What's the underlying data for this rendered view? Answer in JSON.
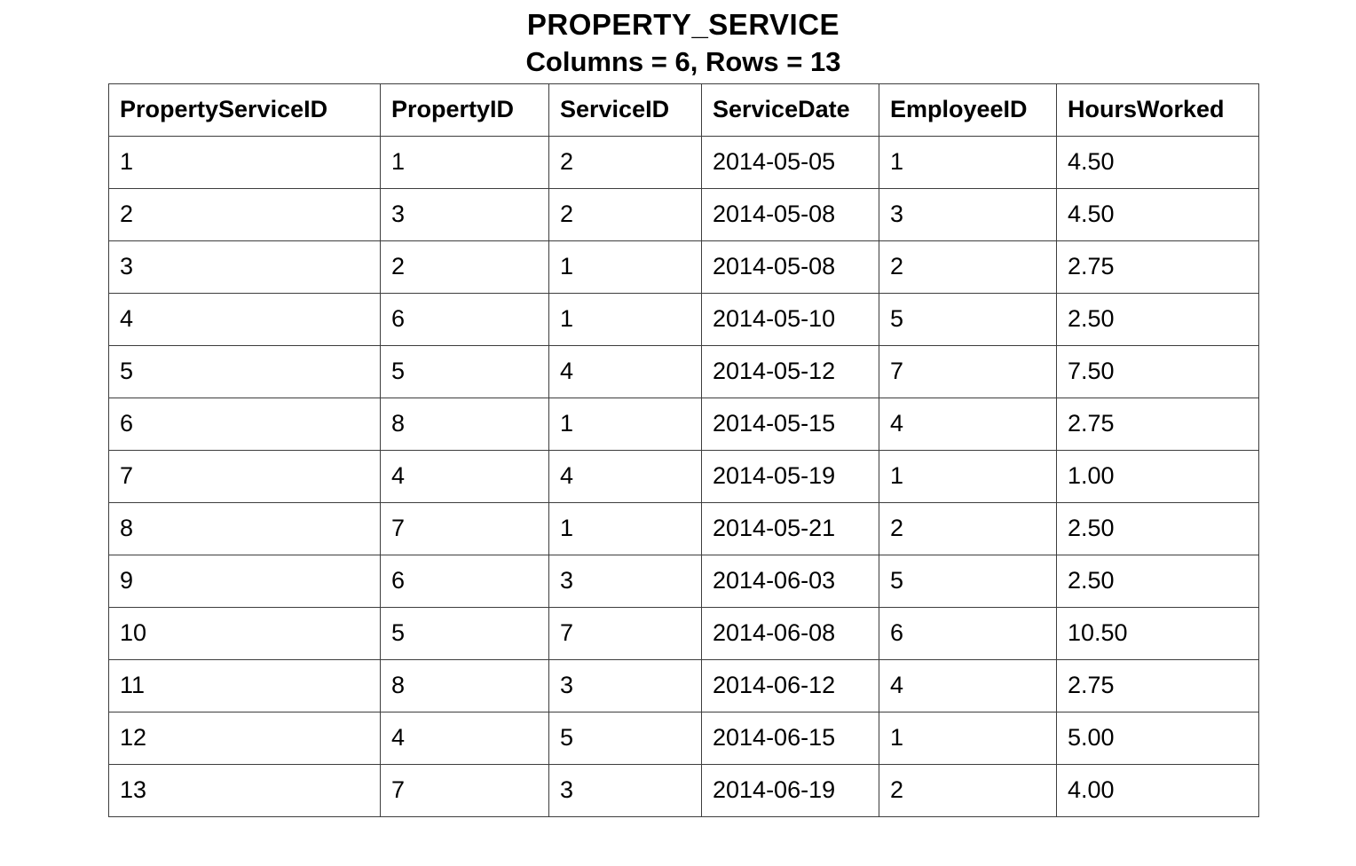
{
  "title": "PROPERTY_SERVICE",
  "subtitle": "Columns = 6, Rows = 13",
  "table": {
    "columns": [
      "PropertyServiceID",
      "PropertyID",
      "ServiceID",
      "ServiceDate",
      "EmployeeID",
      "HoursWorked"
    ],
    "rows": [
      [
        "1",
        "1",
        "2",
        "2014-05-05",
        "1",
        "4.50"
      ],
      [
        "2",
        "3",
        "2",
        "2014-05-08",
        "3",
        "4.50"
      ],
      [
        "3",
        "2",
        "1",
        "2014-05-08",
        "2",
        "2.75"
      ],
      [
        "4",
        "6",
        "1",
        "2014-05-10",
        "5",
        "2.50"
      ],
      [
        "5",
        "5",
        "4",
        "2014-05-12",
        "7",
        "7.50"
      ],
      [
        "6",
        "8",
        "1",
        "2014-05-15",
        "4",
        "2.75"
      ],
      [
        "7",
        "4",
        "4",
        "2014-05-19",
        "1",
        "1.00"
      ],
      [
        "8",
        "7",
        "1",
        "2014-05-21",
        "2",
        "2.50"
      ],
      [
        "9",
        "6",
        "3",
        "2014-06-03",
        "5",
        "2.50"
      ],
      [
        "10",
        "5",
        "7",
        "2014-06-08",
        "6",
        "10.50"
      ],
      [
        "11",
        "8",
        "3",
        "2014-06-12",
        "4",
        "2.75"
      ],
      [
        "12",
        "4",
        "5",
        "2014-06-15",
        "1",
        "5.00"
      ],
      [
        "13",
        "7",
        "3",
        "2014-06-19",
        "2",
        "4.00"
      ]
    ]
  }
}
